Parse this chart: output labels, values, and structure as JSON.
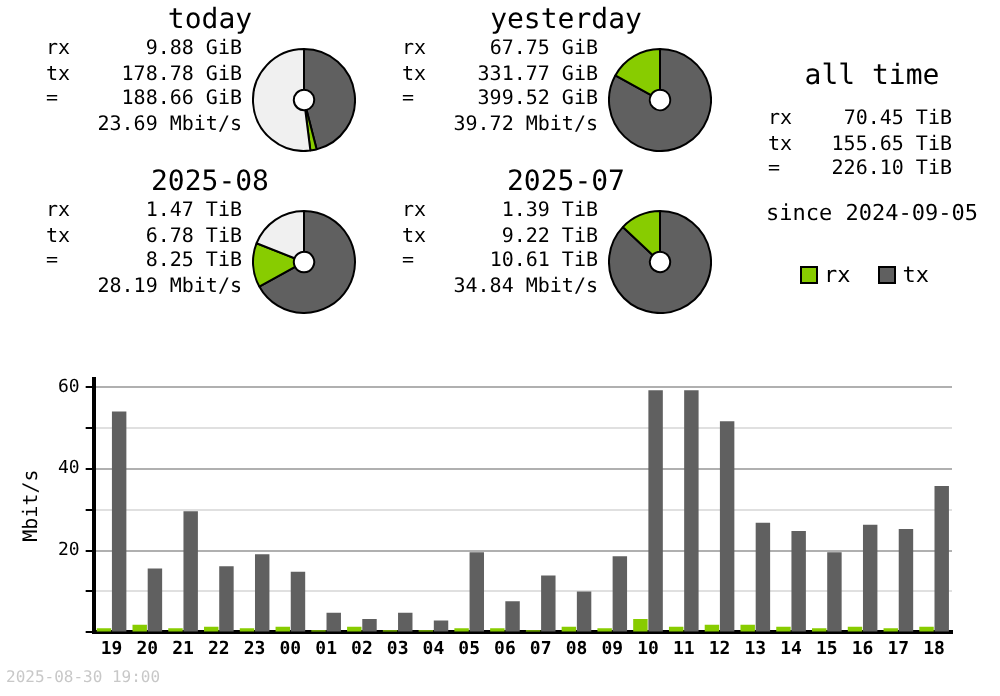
{
  "chart_data": [
    {
      "type": "donut",
      "title": "today",
      "categories": [
        null,
        null,
        null
      ],
      "values": [
        46,
        2,
        52
      ],
      "colors": [
        "#606060",
        "#88cc00",
        "#f0f0f0"
      ],
      "annotations": [
        "rx 9.88 GiB",
        "tx 178.78 GiB",
        "= 188.66 GiB",
        "23.69 Mbit/s"
      ]
    },
    {
      "type": "donut",
      "title": "yesterday",
      "categories": [
        null,
        null
      ],
      "values": [
        83,
        17
      ],
      "colors": [
        "#606060",
        "#88cc00"
      ],
      "annotations": [
        "rx 67.75 GiB",
        "tx 331.77 GiB",
        "= 399.52 GiB",
        "39.72 Mbit/s"
      ]
    },
    {
      "type": "other",
      "title": "all time",
      "annotations": [
        "rx 70.45 TiB",
        "tx 155.65 TiB",
        "= 226.10 TiB",
        "since 2024-09-05"
      ]
    },
    {
      "type": "donut",
      "title": "2025-08",
      "categories": [
        null,
        null,
        null
      ],
      "values": [
        67,
        14,
        19
      ],
      "colors": [
        "#606060",
        "#88cc00",
        "#f0f0f0"
      ],
      "annotations": [
        "rx 1.47 TiB",
        "tx 6.78 TiB",
        "= 8.25 TiB",
        "28.19 Mbit/s"
      ]
    },
    {
      "type": "donut",
      "title": "2025-07",
      "categories": [
        null,
        null
      ],
      "values": [
        87,
        13
      ],
      "colors": [
        "#606060",
        "#88cc00"
      ],
      "annotations": [
        "rx 1.39 TiB",
        "tx 9.22 TiB",
        "= 10.61 TiB",
        "34.84 Mbit/s"
      ]
    },
    {
      "type": "bar",
      "ylabel": "Mbit/s",
      "categories": [
        "19",
        "20",
        "21",
        "22",
        "23",
        "00",
        "01",
        "02",
        "03",
        "04",
        "05",
        "06",
        "07",
        "08",
        "09",
        "10",
        "11",
        "12",
        "13",
        "14",
        "15",
        "16",
        "17",
        "18"
      ],
      "series": [
        {
          "name": "rx",
          "color": "#88cc00",
          "values": [
            1.0,
            1.9,
            1.0,
            1.4,
            1.0,
            1.4,
            0.5,
            1.4,
            0.5,
            0.5,
            1.0,
            1.0,
            0.5,
            1.4,
            1.0,
            3.3,
            1.4,
            1.9,
            1.9,
            1.4,
            1.0,
            1.4,
            1.0,
            1.4
          ]
        },
        {
          "name": "tx",
          "color": "#606060",
          "values": [
            54.0,
            15.6,
            29.6,
            16.2,
            19.1,
            14.8,
            4.8,
            3.3,
            4.8,
            2.9,
            19.6,
            7.6,
            13.9,
            10.0,
            18.6,
            59.2,
            59.2,
            51.6,
            26.8,
            24.8,
            19.6,
            26.3,
            25.3,
            35.8
          ]
        }
      ],
      "ylim": [
        0,
        62
      ],
      "yticks": [
        {
          "value": 0,
          "label": null
        },
        {
          "value": 10,
          "label": null
        },
        20,
        {
          "value": 30,
          "label": null
        },
        40,
        {
          "value": 50,
          "label": null
        },
        60
      ],
      "grid": "y",
      "legend": "top right",
      "annotations": [
        "2025-08-30 19:00"
      ]
    }
  ]
}
